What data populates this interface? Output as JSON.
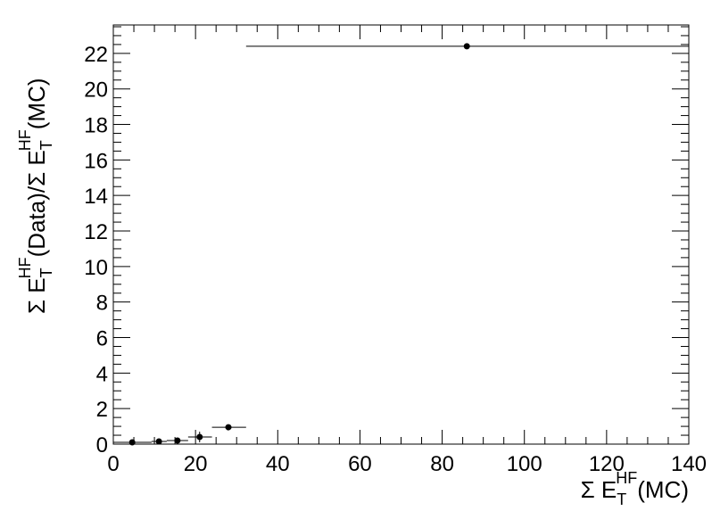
{
  "chart_data": {
    "type": "scatter",
    "title": "",
    "xlabel": {
      "main": "Σ E",
      "sub": "T",
      "sup": "HF",
      "tail": "(MC)"
    },
    "ylabel": {
      "main": "Σ E",
      "sub": "T",
      "sup": "HF",
      "mid": "(Data)/Σ E",
      "sub2": "T",
      "sup2": "HF",
      "tail": "(MC)"
    },
    "xlim": [
      0,
      140
    ],
    "ylim": [
      0,
      23.6
    ],
    "xticks": [
      0,
      20,
      40,
      60,
      80,
      100,
      120,
      140
    ],
    "yticks": [
      0,
      2,
      4,
      6,
      8,
      10,
      12,
      14,
      16,
      18,
      20,
      22
    ],
    "grid": false,
    "marker_color": "#000000",
    "points": [
      {
        "x": 4.6,
        "y": 0.1,
        "xlo": 0,
        "xhi": 9.3,
        "yerr": 0.05
      },
      {
        "x": 11.1,
        "y": 0.15,
        "xlo": 9.3,
        "xhi": 13,
        "yerr": 0.08
      },
      {
        "x": 15.6,
        "y": 0.2,
        "xlo": 13,
        "xhi": 18.2,
        "yerr": 0.15
      },
      {
        "x": 21,
        "y": 0.4,
        "xlo": 18.2,
        "xhi": 24,
        "yerr": 0.3
      },
      {
        "x": 28,
        "y": 0.95,
        "xlo": 24,
        "xhi": 32.3,
        "yerr": 0.1
      },
      {
        "x": 86,
        "y": 22.4,
        "xlo": 32.3,
        "xhi": 140,
        "yerr": 0.1
      }
    ]
  }
}
